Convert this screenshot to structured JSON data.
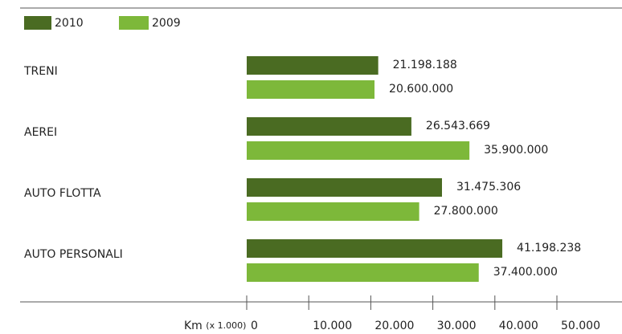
{
  "chart_data": {
    "type": "barh",
    "categories": [
      "TRENI",
      "AEREI",
      "AUTO FLOTTA",
      "AUTO PERSONALI"
    ],
    "series": [
      {
        "name": "2010",
        "color": "#4a6b22",
        "values": [
          21198.188,
          26543.669,
          31475.306,
          41198.238
        ],
        "value_labels": [
          "21.198.188",
          "26.543.669",
          "31.475.306",
          "41.198.238"
        ]
      },
      {
        "name": "2009",
        "color": "#7db83a",
        "values": [
          20600,
          35900,
          27800,
          37400
        ],
        "value_labels": [
          "20.600.000",
          "35.900.000",
          "27.800.000",
          "37.400.000"
        ]
      }
    ],
    "xlabel": {
      "text": "Km",
      "unit": "(x 1.000)"
    },
    "xlim": [
      0,
      50000
    ],
    "xticks": [
      0,
      {
        "value": 10000,
        "label": "10.000"
      },
      {
        "value": 20000,
        "label": "20.000"
      },
      {
        "value": 30000,
        "label": "30.000"
      },
      {
        "value": 40000,
        "label": "40.000"
      },
      {
        "value": 50000,
        "label": "50.000"
      }
    ],
    "legend": "top-left"
  }
}
